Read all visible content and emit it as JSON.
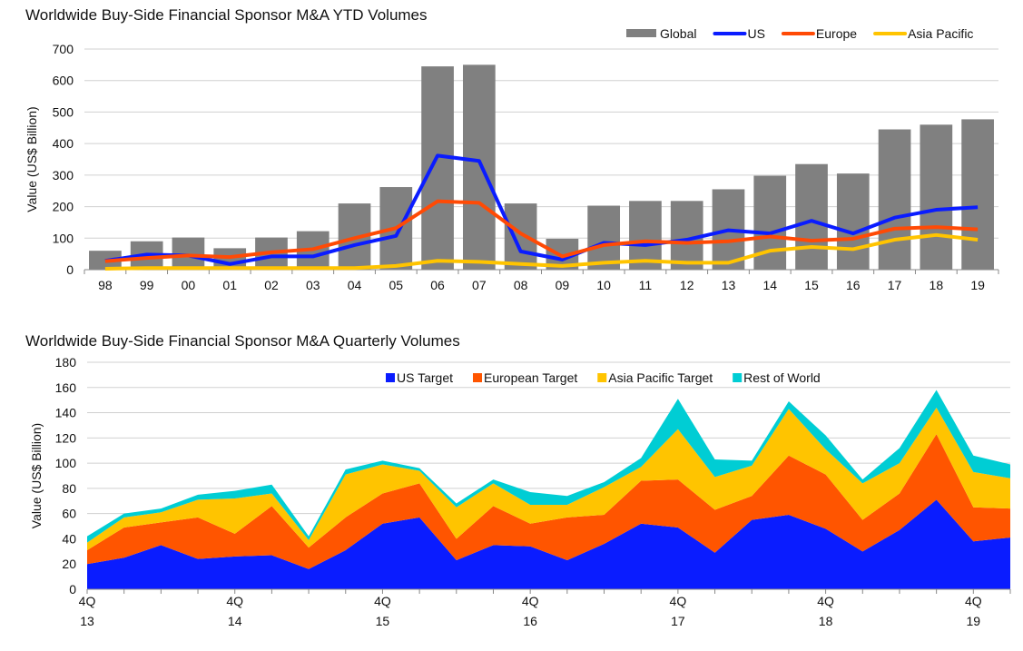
{
  "chart_data": [
    {
      "type": "bar",
      "title": "Worldwide Buy-Side Financial Sponsor M&A YTD Volumes",
      "xlabel": "",
      "ylabel": "Value (US$ Billion)",
      "ylim": [
        0,
        700
      ],
      "yticks": [
        0,
        100,
        200,
        300,
        400,
        500,
        600,
        700
      ],
      "grid": true,
      "legend_position": "top-right",
      "categories": [
        "98",
        "99",
        "00",
        "01",
        "02",
        "03",
        "04",
        "05",
        "06",
        "07",
        "08",
        "09",
        "10",
        "11",
        "12",
        "13",
        "14",
        "15",
        "16",
        "17",
        "18",
        "19"
      ],
      "series": [
        {
          "name": "Global",
          "kind": "bar",
          "color": "#808080",
          "values": [
            60,
            90,
            102,
            68,
            102,
            122,
            210,
            262,
            645,
            650,
            210,
            98,
            203,
            218,
            218,
            255,
            298,
            335,
            305,
            445,
            460,
            477
          ]
        },
        {
          "name": "US",
          "kind": "line",
          "color": "#0a1cff",
          "values": [
            28,
            48,
            45,
            18,
            42,
            42,
            78,
            107,
            362,
            345,
            58,
            32,
            85,
            78,
            95,
            125,
            115,
            155,
            115,
            165,
            190,
            198
          ]
        },
        {
          "name": "Europe",
          "kind": "line",
          "color": "#ff4a05",
          "values": [
            27,
            37,
            45,
            40,
            55,
            65,
            100,
            132,
            217,
            212,
            115,
            42,
            78,
            90,
            85,
            90,
            105,
            92,
            98,
            130,
            135,
            128
          ]
        },
        {
          "name": "Asia Pacific",
          "kind": "line",
          "color": "#ffc400",
          "values": [
            3,
            5,
            5,
            5,
            5,
            5,
            5,
            12,
            28,
            25,
            18,
            12,
            22,
            28,
            22,
            22,
            60,
            72,
            65,
            95,
            110,
            95
          ]
        }
      ]
    },
    {
      "type": "area",
      "stacked": true,
      "title": "Worldwide Buy-Side Financial Sponsor M&A Quarterly Volumes",
      "xlabel": "",
      "ylabel": "Value (US$ Billion)",
      "ylim": [
        0,
        180
      ],
      "yticks": [
        0,
        20,
        40,
        60,
        80,
        100,
        120,
        140,
        160,
        180
      ],
      "grid": true,
      "legend_position": "top-right",
      "x": [
        "4Q13",
        "1Q14",
        "2Q14",
        "3Q14",
        "4Q14",
        "1Q15",
        "2Q15",
        "3Q15",
        "4Q15",
        "1Q16",
        "2Q16",
        "3Q16",
        "4Q16",
        "1Q17",
        "2Q17",
        "3Q17",
        "4Q17",
        "1Q18",
        "2Q18",
        "3Q18",
        "4Q18",
        "1Q19",
        "2Q19",
        "3Q19",
        "4Q19",
        "1Q20"
      ],
      "xtick_labels": [
        {
          "index": 0,
          "line1": "4Q",
          "line2": "13"
        },
        {
          "index": 4,
          "line1": "4Q",
          "line2": "14"
        },
        {
          "index": 8,
          "line1": "4Q",
          "line2": "15"
        },
        {
          "index": 12,
          "line1": "4Q",
          "line2": "16"
        },
        {
          "index": 16,
          "line1": "4Q",
          "line2": "17"
        },
        {
          "index": 20,
          "line1": "4Q",
          "line2": "18"
        },
        {
          "index": 24,
          "line1": "4Q",
          "line2": "19"
        }
      ],
      "series": [
        {
          "name": "US Target",
          "color": "#0a1cff",
          "values": [
            20,
            25,
            35,
            24,
            26,
            27,
            16,
            31,
            52,
            57,
            23,
            35,
            34,
            23,
            36,
            52,
            49,
            29,
            55,
            59,
            48,
            30,
            47,
            71,
            38,
            41
          ]
        },
        {
          "name": "European Target",
          "color": "#ff5500",
          "values": [
            11,
            24,
            18,
            33,
            18,
            39,
            17,
            26,
            24,
            27,
            17,
            31,
            18,
            34,
            23,
            34,
            38,
            34,
            19,
            47,
            43,
            25,
            29,
            52,
            27,
            23
          ]
        },
        {
          "name": "Asia Pacific Target",
          "color": "#ffc400",
          "values": [
            6,
            8,
            8,
            14,
            28,
            10,
            6,
            34,
            23,
            10,
            25,
            18,
            15,
            10,
            22,
            11,
            40,
            26,
            24,
            37,
            20,
            29,
            24,
            21,
            28,
            24
          ]
        },
        {
          "name": "Rest of World",
          "color": "#00cdd4",
          "values": [
            5,
            3,
            3,
            4,
            6,
            7,
            3,
            4,
            3,
            2,
            3,
            3,
            10,
            7,
            4,
            7,
            24,
            14,
            4,
            6,
            11,
            3,
            12,
            14,
            13,
            11
          ]
        }
      ]
    }
  ]
}
